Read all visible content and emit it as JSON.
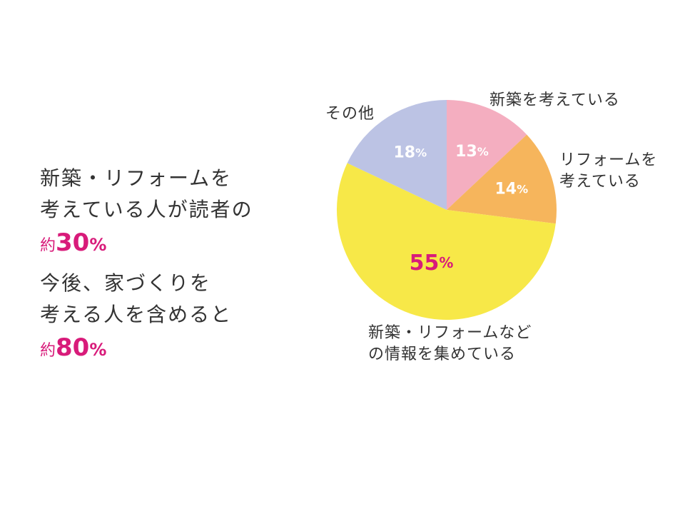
{
  "summary": {
    "line1": "新築・リフォームを",
    "line2": "考えている人が読者の",
    "highlight1_prefix": "約",
    "highlight1_num": "30",
    "highlight1_unit": "%",
    "line3": "今後、家づくりを",
    "line4": "考える人を含めると",
    "highlight2_prefix": "約",
    "highlight2_num": "80",
    "highlight2_unit": "%"
  },
  "chart_data": {
    "type": "pie",
    "labels": [
      "新築を考えている",
      "リフォームを\n考えている",
      "新築・リフォームなど\nの情報を集めている",
      "その他"
    ],
    "values": [
      13,
      14,
      55,
      18
    ],
    "value_labels": [
      "13",
      "14",
      "55",
      "18"
    ],
    "value_unit": "%",
    "colors": [
      "#f4aec0",
      "#f6b55c",
      "#f7e848",
      "#bcc3e4"
    ],
    "value_label_colors": [
      "#ffffff",
      "#ffffff",
      "#d81b7a",
      "#ffffff"
    ]
  }
}
